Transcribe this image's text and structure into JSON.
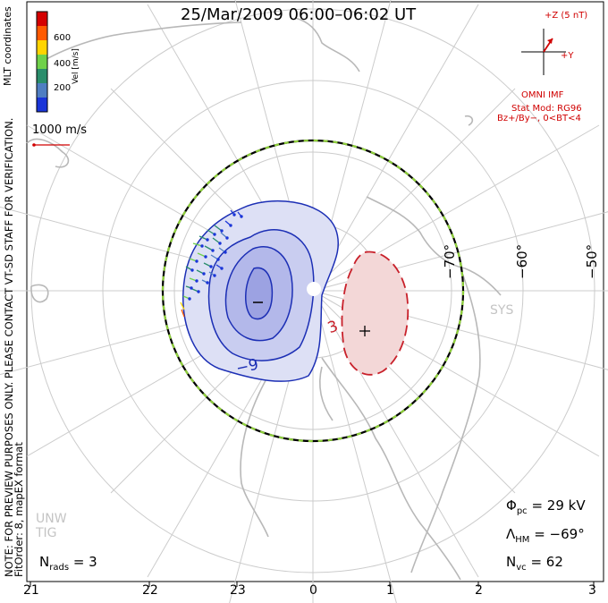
{
  "title": "25/Mar/2009 06:00–06:02 UT",
  "colorbar": {
    "label": "Vel [m/s]",
    "ticks": [
      "600",
      "400",
      "200"
    ],
    "colors": [
      "#d40000",
      "#ff5a00",
      "#ffd400",
      "#6fd14a",
      "#2a8d6b",
      "#4f7ec2",
      "#1a35d8"
    ]
  },
  "coordinates_label": "MLT coordinates",
  "reference_vector": "1000 m/s",
  "note_line1": "NOTE: FOR PREVIEW PURPOSES ONLY. PLEASE CONTACT VT-SD STAFF FOR VERIFICATION.",
  "note_line2": "FitOrder: 8, mapEX format",
  "imf": {
    "z_label": "+Z (5 nT)",
    "y_label": "+Y",
    "source": "OMNI IMF",
    "stat_mod": "Stat Mod: RG96",
    "condition": "Bz+/By−, 0<BT<4"
  },
  "latitude_labels": [
    "−70°",
    "−60°",
    "−50°"
  ],
  "contour_labels": {
    "negative": "−9",
    "positive": "3"
  },
  "station_labels": [
    "UNW",
    "TIG",
    "SYS"
  ],
  "stats": {
    "phi_symbol": "Φ",
    "phi_sub": "pc",
    "phi_value": "= 29 kV",
    "lambda_symbol": "Λ",
    "lambda_sub": "HM",
    "lambda_value": "= −69°",
    "nvc_symbol": "N",
    "nvc_sub": "vc",
    "nvc_value": "= 62",
    "nrads_symbol": "N",
    "nrads_sub": "rads",
    "nrads_value": "= 3"
  },
  "mlt_labels": [
    "21",
    "22",
    "23",
    "0",
    "1",
    "2",
    "3"
  ],
  "colors": {
    "negative_cell": "#1c2fb5",
    "positive_cell": "#c8202a",
    "boundary_green": "#8fd13a",
    "imf_red": "#d00000",
    "grid": "#c8c8c8",
    "coast": "#b8b8b8"
  }
}
